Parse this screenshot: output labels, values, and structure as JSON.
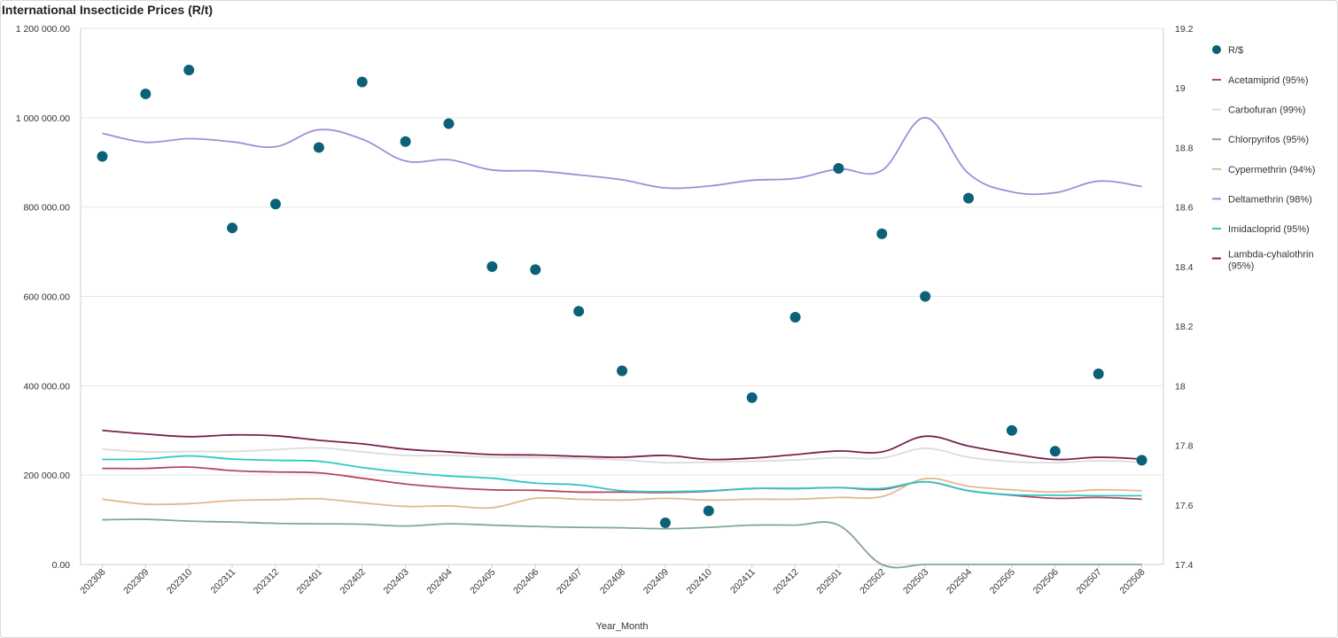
{
  "chart_data": {
    "type": "line",
    "title": "International Insecticide Prices (R/t)",
    "xlabel": "Year_Month",
    "ylabel": "",
    "ylim": [
      0,
      1200000
    ],
    "y2lim": [
      17.4,
      19.2
    ],
    "y_ticks": [
      "0.00",
      "200 000.00",
      "400 000.00",
      "600 000.00",
      "800 000.00",
      "1 000 000.00",
      "1 200 000.00"
    ],
    "y_tick_values": [
      0,
      200000,
      400000,
      600000,
      800000,
      1000000,
      1200000
    ],
    "y2_ticks": [
      "17.4",
      "17.6",
      "17.8",
      "18",
      "18.2",
      "18.4",
      "18.6",
      "18.8",
      "19",
      "19.2"
    ],
    "y2_tick_values": [
      17.4,
      17.6,
      17.8,
      18.0,
      18.2,
      18.4,
      18.6,
      18.8,
      19.0,
      19.2
    ],
    "categories": [
      "202308",
      "202309",
      "202310",
      "202311",
      "202312",
      "202401",
      "202402",
      "202403",
      "202404",
      "202405",
      "202406",
      "202407",
      "202408",
      "202409",
      "202410",
      "202411",
      "202412",
      "202501",
      "202502",
      "202503",
      "202504",
      "202505",
      "202506",
      "202507",
      "202508"
    ],
    "scatter": {
      "name": "R/$",
      "color": "#0b6178",
      "axis": "right",
      "values": [
        18.77,
        18.98,
        19.06,
        18.53,
        18.61,
        18.8,
        19.02,
        18.82,
        18.88,
        18.4,
        18.39,
        18.25,
        18.05,
        17.54,
        17.58,
        17.96,
        18.23,
        18.73,
        18.51,
        18.3,
        18.63,
        17.85,
        17.78,
        18.04,
        17.75
      ]
    },
    "series": [
      {
        "name": "Acetamiprid (95%)",
        "color": "#b5485c",
        "values": [
          215000,
          215000,
          218000,
          210000,
          207000,
          205000,
          193000,
          180000,
          172000,
          167000,
          166000,
          162000,
          162000,
          161000,
          164000,
          170000,
          170000,
          172000,
          168000,
          185000,
          165000,
          155000,
          148000,
          150000,
          146000
        ]
      },
      {
        "name": "Carbofuran (99%)",
        "color": "#dcdcdc",
        "values": [
          258000,
          252000,
          253000,
          253000,
          257000,
          261000,
          252000,
          244000,
          244000,
          240000,
          239000,
          237000,
          234000,
          228000,
          229000,
          231000,
          234000,
          239000,
          238000,
          260000,
          240000,
          230000,
          228000,
          232000,
          229000
        ]
      },
      {
        "name": "Chlorpyrifos (95%)",
        "color": "#7fa896",
        "values": [
          100000,
          101000,
          97000,
          95000,
          92000,
          91000,
          90000,
          86000,
          91000,
          88000,
          85000,
          83000,
          82000,
          80000,
          83000,
          88000,
          88000,
          88000,
          0,
          0,
          0,
          0,
          0,
          0,
          0
        ]
      },
      {
        "name": "Cypermethrin (94%)",
        "color": "#e2b98c",
        "values": [
          146000,
          135000,
          136000,
          143000,
          145000,
          147000,
          138000,
          130000,
          131000,
          127000,
          148000,
          146000,
          144000,
          148000,
          144000,
          146000,
          146000,
          150000,
          152000,
          192000,
          175000,
          167000,
          162000,
          167000,
          165000
        ]
      },
      {
        "name": "Deltamethrin (98%)",
        "color": "#9e8fd6",
        "values": [
          965000,
          945000,
          953000,
          946000,
          935000,
          973000,
          952000,
          903000,
          906000,
          883000,
          881000,
          872000,
          861000,
          843000,
          847000,
          860000,
          864000,
          885000,
          882000,
          1000000,
          875000,
          834000,
          832000,
          858000,
          846000
        ]
      },
      {
        "name": "Imidacloprid (95%)",
        "color": "#2ec7c7",
        "values": [
          235000,
          236000,
          243000,
          236000,
          233000,
          231000,
          217000,
          206000,
          198000,
          193000,
          182000,
          178000,
          165000,
          163000,
          165000,
          170000,
          170000,
          172000,
          170000,
          185000,
          165000,
          156000,
          155000,
          154000,
          154000
        ]
      },
      {
        "name": "Lambda-cyhalothrin (95%)",
        "color": "#7a1f52",
        "values": [
          300000,
          292000,
          286000,
          290000,
          288000,
          278000,
          270000,
          258000,
          252000,
          246000,
          245000,
          242000,
          240000,
          244000,
          235000,
          238000,
          246000,
          254000,
          252000,
          287000,
          265000,
          248000,
          235000,
          240000,
          236000
        ]
      }
    ],
    "legend_position": "right",
    "grid": true
  }
}
